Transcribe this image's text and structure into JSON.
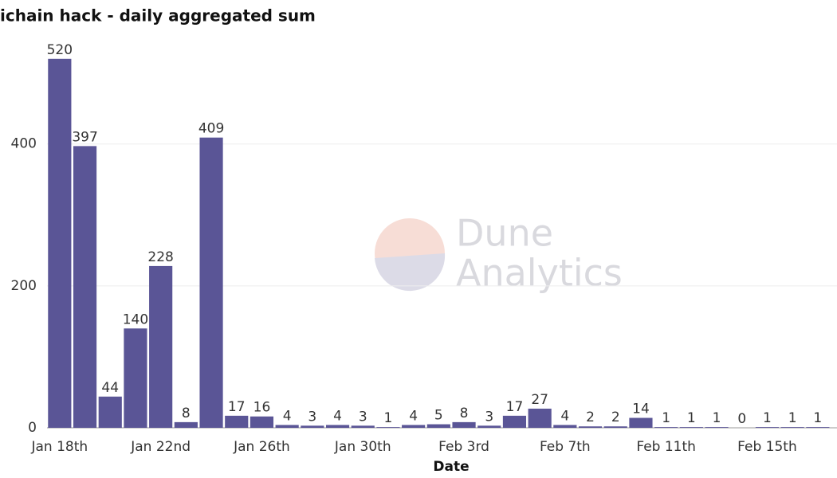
{
  "chart_data": {
    "type": "bar",
    "title": "ichain hack - daily aggregated sum",
    "x_label": "Date",
    "watermark": [
      "Dune",
      "Analytics"
    ],
    "categories": [
      "Jan 18th",
      null,
      null,
      null,
      "Jan 22nd",
      null,
      null,
      null,
      "Jan 26th",
      null,
      null,
      null,
      "Jan 30th",
      null,
      null,
      null,
      "Feb 3rd",
      null,
      null,
      null,
      "Feb 7th",
      null,
      null,
      null,
      "Feb 11th",
      null,
      null,
      null,
      "Feb 15th",
      null,
      null
    ],
    "values": [
      520,
      397,
      44,
      140,
      228,
      8,
      409,
      17,
      16,
      4,
      3,
      4,
      3,
      1,
      4,
      5,
      8,
      3,
      17,
      27,
      4,
      2,
      2,
      14,
      1,
      1,
      1,
      0,
      1,
      1,
      1
    ],
    "color": "#5a5596",
    "ylim": [
      0,
      540
    ],
    "yticks": [
      0,
      200,
      400
    ],
    "grid": true
  }
}
